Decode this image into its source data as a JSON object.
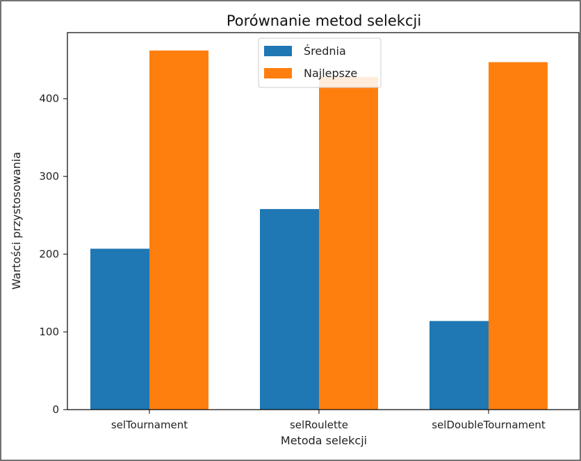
{
  "chart_data": {
    "type": "bar",
    "title": "Porównanie metod selekcji",
    "xlabel": "Metoda selekcji",
    "ylabel": "Wartości przystosowania",
    "categories": [
      "selTournament",
      "selRoulette",
      "selDoubleTournament"
    ],
    "series": [
      {
        "name": "Średnia",
        "values": [
          207,
          258,
          114
        ],
        "color": "#1f77b4"
      },
      {
        "name": "Najlepsze",
        "values": [
          462,
          428,
          447
        ],
        "color": "#ff7f0e"
      }
    ],
    "ylim": [
      0,
      485
    ],
    "yticks": [
      0,
      100,
      200,
      300,
      400
    ],
    "legend": "top-center",
    "grid": false
  }
}
